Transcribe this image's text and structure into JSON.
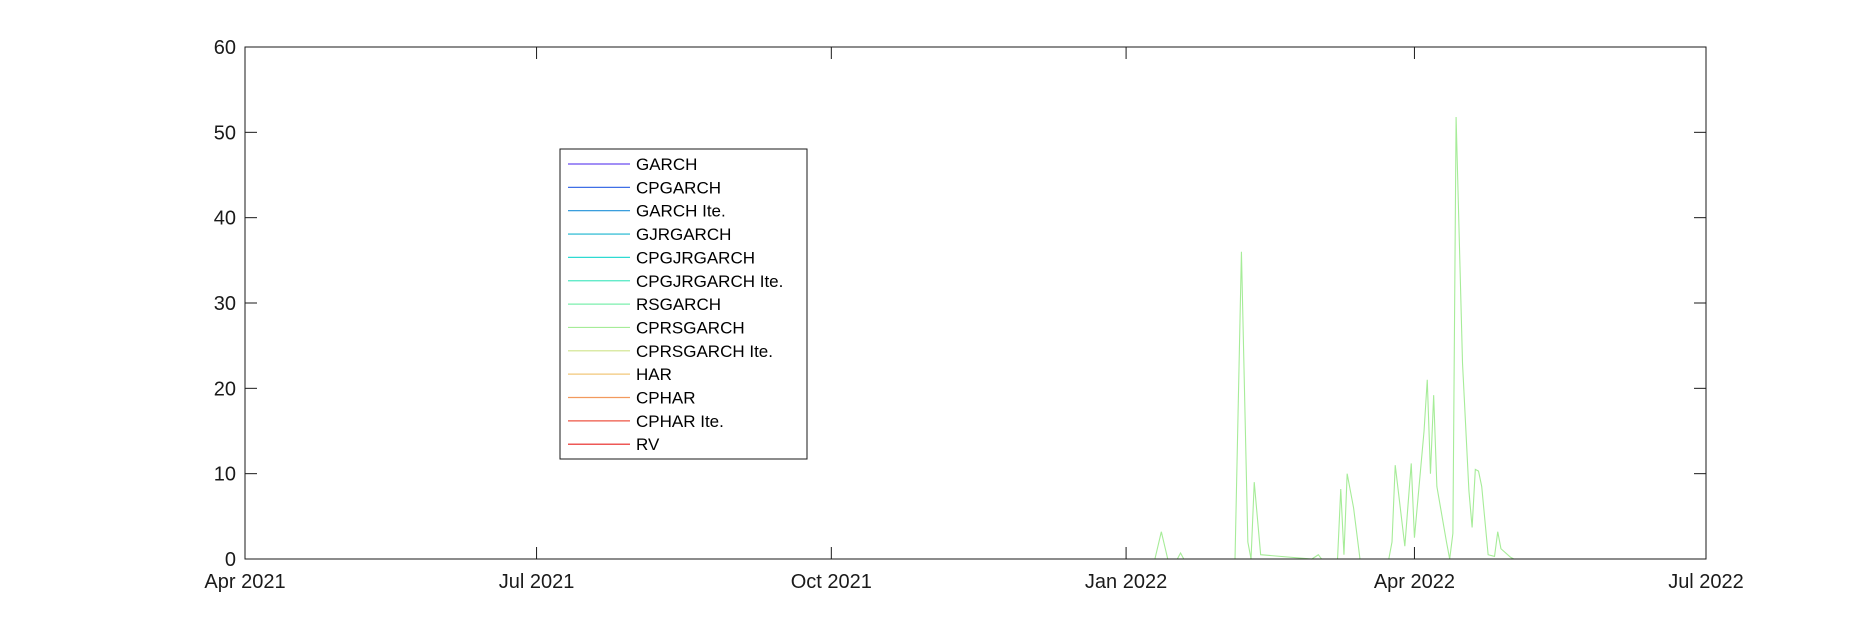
{
  "chart_data": {
    "type": "line",
    "title": "",
    "xlabel": "",
    "ylabel": "",
    "xlim": [
      "2021-04-01",
      "2022-07-01"
    ],
    "ylim": [
      0,
      60
    ],
    "grid": false,
    "legend_position": "upper-left",
    "x_ticks": [
      {
        "date": "2021-04-01",
        "label": "Apr 2021"
      },
      {
        "date": "2021-07-01",
        "label": "Jul 2021"
      },
      {
        "date": "2021-10-01",
        "label": "Oct 2021"
      },
      {
        "date": "2022-01-01",
        "label": "Jan 2022"
      },
      {
        "date": "2022-04-01",
        "label": "Apr 2022"
      },
      {
        "date": "2022-07-01",
        "label": "Jul 2022"
      }
    ],
    "y_ticks": [
      0,
      10,
      20,
      30,
      40,
      50,
      60
    ],
    "series": [
      {
        "name": "GARCH",
        "color": "#6a4cf0",
        "points": [
          [
            "2021-05-18",
            0
          ],
          [
            "2022-06-01",
            0
          ]
        ]
      },
      {
        "name": "CPGARCH",
        "color": "#3f6fe6",
        "points": [
          [
            "2021-05-18",
            0
          ],
          [
            "2022-06-01",
            0
          ]
        ]
      },
      {
        "name": "GARCH Ite.",
        "color": "#1e90d8",
        "points": [
          [
            "2021-05-18",
            0
          ],
          [
            "2022-06-01",
            0
          ]
        ]
      },
      {
        "name": "GJRGARCH",
        "color": "#17b4cf",
        "points": [
          [
            "2021-05-18",
            0
          ],
          [
            "2022-06-01",
            0
          ]
        ]
      },
      {
        "name": "CPGJRGARCH",
        "color": "#2edad2",
        "points": [
          [
            "2021-05-18",
            0
          ],
          [
            "2022-06-01",
            0
          ]
        ]
      },
      {
        "name": "CPGJRGARCH Ite.",
        "color": "#4fe8c2",
        "points": [
          [
            "2021-05-18",
            0
          ],
          [
            "2022-06-01",
            0
          ]
        ]
      },
      {
        "name": "RSGARCH",
        "color": "#7cefae",
        "points": [
          [
            "2021-05-18",
            0
          ],
          [
            "2022-06-01",
            0
          ]
        ]
      },
      {
        "name": "CPRSGARCH",
        "color": "#a6ec98",
        "points": [
          [
            "2021-05-18",
            0
          ],
          [
            "2022-01-10",
            0
          ],
          [
            "2022-01-12",
            3.2
          ],
          [
            "2022-01-14",
            0
          ],
          [
            "2022-01-17",
            0
          ],
          [
            "2022-01-18",
            0.7
          ],
          [
            "2022-01-19",
            0
          ],
          [
            "2022-02-04",
            0
          ],
          [
            "2022-02-06",
            36
          ],
          [
            "2022-02-08",
            2
          ],
          [
            "2022-02-09",
            0
          ],
          [
            "2022-02-10",
            9
          ],
          [
            "2022-02-12",
            0.5
          ],
          [
            "2022-02-28",
            0
          ],
          [
            "2022-03-02",
            0.5
          ],
          [
            "2022-03-03",
            0
          ],
          [
            "2022-03-08",
            0
          ],
          [
            "2022-03-09",
            8.2
          ],
          [
            "2022-03-10",
            0.5
          ],
          [
            "2022-03-11",
            10
          ],
          [
            "2022-03-13",
            6
          ],
          [
            "2022-03-15",
            0
          ],
          [
            "2022-03-24",
            0
          ],
          [
            "2022-03-25",
            2
          ],
          [
            "2022-03-26",
            11
          ],
          [
            "2022-03-29",
            1.5
          ],
          [
            "2022-03-31",
            11.2
          ],
          [
            "2022-04-01",
            2.5
          ],
          [
            "2022-04-04",
            15
          ],
          [
            "2022-04-05",
            21
          ],
          [
            "2022-04-06",
            10
          ],
          [
            "2022-04-07",
            19.2
          ],
          [
            "2022-04-08",
            8.5
          ],
          [
            "2022-04-11",
            2
          ],
          [
            "2022-04-12",
            0
          ],
          [
            "2022-04-13",
            3
          ],
          [
            "2022-04-14",
            51.8
          ],
          [
            "2022-04-16",
            23
          ],
          [
            "2022-04-18",
            8
          ],
          [
            "2022-04-19",
            3.7
          ],
          [
            "2022-04-20",
            10.5
          ],
          [
            "2022-04-21",
            10.3
          ],
          [
            "2022-04-22",
            8.5
          ],
          [
            "2022-04-24",
            0.5
          ],
          [
            "2022-04-26",
            0.3
          ],
          [
            "2022-04-27",
            3.2
          ],
          [
            "2022-04-28",
            1.2
          ],
          [
            "2022-05-01",
            0.2
          ],
          [
            "2022-05-02",
            0
          ],
          [
            "2022-06-01",
            0
          ]
        ]
      },
      {
        "name": "CPRSGARCH Ite.",
        "color": "#cfe48a",
        "points": [
          [
            "2021-05-18",
            0
          ],
          [
            "2022-06-01",
            0
          ]
        ]
      },
      {
        "name": "HAR",
        "color": "#f2c77a",
        "points": [
          [
            "2021-05-18",
            0
          ],
          [
            "2022-06-01",
            0
          ]
        ]
      },
      {
        "name": "CPHAR",
        "color": "#f29a5e",
        "points": [
          [
            "2021-05-18",
            0
          ],
          [
            "2022-06-01",
            0
          ]
        ]
      },
      {
        "name": "CPHAR Ite.",
        "color": "#ee5544",
        "points": [
          [
            "2021-05-18",
            0
          ],
          [
            "2022-06-01",
            0
          ]
        ]
      },
      {
        "name": "RV",
        "color": "#e8201f",
        "points": [
          [
            "2021-05-18",
            0
          ],
          [
            "2022-06-01",
            0
          ]
        ]
      }
    ]
  }
}
